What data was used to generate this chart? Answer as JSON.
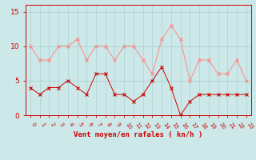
{
  "x": [
    0,
    1,
    2,
    3,
    4,
    5,
    6,
    7,
    8,
    9,
    10,
    11,
    12,
    13,
    14,
    15,
    16,
    17,
    18,
    19,
    20,
    21,
    22,
    23
  ],
  "wind_avg": [
    4,
    3,
    4,
    4,
    5,
    4,
    3,
    6,
    6,
    3,
    3,
    2,
    3,
    5,
    7,
    4,
    0,
    2,
    3,
    3,
    3,
    3,
    3,
    3
  ],
  "wind_gust": [
    10,
    8,
    8,
    10,
    10,
    11,
    8,
    10,
    10,
    8,
    10,
    10,
    8,
    6,
    11,
    13,
    11,
    5,
    8,
    8,
    6,
    6,
    8,
    5
  ],
  "bg_color": "#cce8e8",
  "grid_color": "#aad0d0",
  "avg_color": "#cc0000",
  "gust_color": "#ff8888",
  "xlabel": "Vent moyen/en rafales ( kn/h )",
  "ylim": [
    0,
    16
  ],
  "yticks": [
    0,
    5,
    10,
    15
  ],
  "xlim": [
    -0.5,
    23.5
  ],
  "tick_color": "#cc0000",
  "xlabel_color": "#cc0000",
  "ylabel_color": "#cc0000",
  "spine_color": "#cc0000",
  "marker": "x",
  "markersize": 2.5,
  "linewidth": 0.7,
  "xlabel_fontsize": 6.5,
  "ytick_fontsize": 6.5,
  "xtick_fontsize": 5.0
}
